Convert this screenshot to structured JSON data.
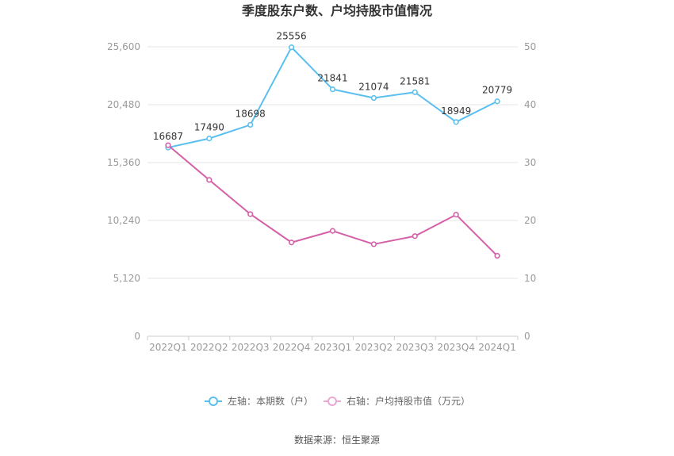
{
  "chart_data": {
    "type": "line",
    "title": "季度股东户数、户均持股市值情况",
    "categories": [
      "2022Q1",
      "2022Q2",
      "2022Q3",
      "2022Q4",
      "2023Q1",
      "2023Q2",
      "2023Q3",
      "2023Q4",
      "2024Q1"
    ],
    "series": [
      {
        "name": "左轴：本期数（户）",
        "axis": "left",
        "color": "#5bc0f0",
        "values": [
          16687,
          17490,
          18698,
          25556,
          21841,
          21074,
          21581,
          18949,
          20779
        ],
        "data_labels": [
          "16687",
          "17490",
          "18698",
          "25556",
          "21841",
          "21074",
          "21581",
          "18949",
          "20779"
        ]
      },
      {
        "name": "右轴：户均持股市值（万元）",
        "axis": "right",
        "color": "#d460a8",
        "values": [
          33.0,
          27.0,
          21.1,
          16.2,
          18.2,
          15.9,
          17.3,
          21.0,
          13.9
        ]
      }
    ],
    "y_left": {
      "range": [
        0,
        25600
      ],
      "ticks": [
        "0",
        "5,120",
        "10,240",
        "15,360",
        "20,480",
        "25,600"
      ]
    },
    "y_right": {
      "range": [
        0,
        50
      ],
      "ticks": [
        "0",
        "10",
        "20",
        "30",
        "40",
        "50"
      ]
    },
    "grid": true,
    "legend_position": "bottom"
  },
  "source": "数据来源：恒生聚源"
}
